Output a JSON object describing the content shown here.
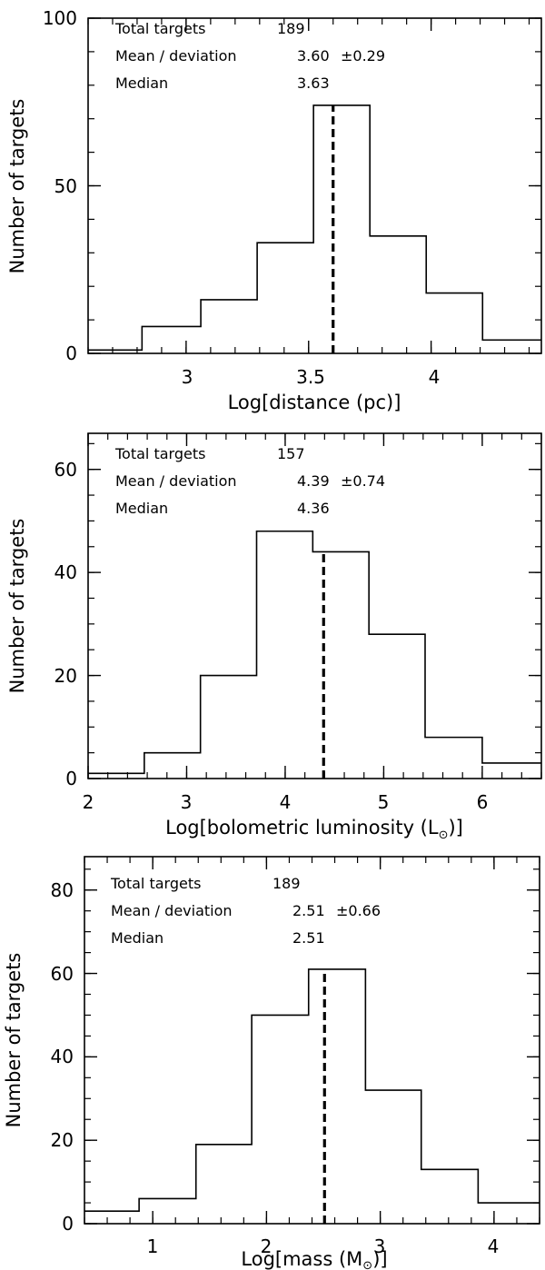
{
  "chart_data": [
    {
      "type": "histogram",
      "xlabel": "Log[distance (pc)]",
      "xlabel_parts": {
        "pre": "Log[distance (pc)]",
        "symbol": "",
        "post": ""
      },
      "ylabel": "Number of targets",
      "xlim": [
        2.6,
        4.45
      ],
      "ylim": [
        0,
        100
      ],
      "xticks": [
        3,
        3.5,
        4
      ],
      "xtick_labels": [
        "3",
        "3.5",
        "4"
      ],
      "xminor_step": 0.1,
      "yticks": [
        0,
        50,
        100
      ],
      "ytick_labels": [
        "0",
        "50",
        "100"
      ],
      "yminor_step": 10,
      "edges": [
        2.6,
        2.82,
        3.06,
        3.29,
        3.52,
        3.75,
        3.98,
        4.21,
        4.45
      ],
      "counts": [
        1,
        8,
        16,
        33,
        74,
        35,
        18,
        4
      ],
      "marker_line_x": 3.6,
      "stats": {
        "total_label": "Total targets",
        "total_value": "189",
        "mean_label": "Mean / deviation",
        "mean_value": "3.60",
        "deviation_value": "±0.29",
        "median_label": "Median",
        "median_value": "3.63"
      }
    },
    {
      "type": "histogram",
      "xlabel": "Log[bolometric luminosity (L⊙)]",
      "xlabel_parts": {
        "pre": "Log[bolometric luminosity (L",
        "symbol": "⊙",
        "post": ")]"
      },
      "ylabel": "Number of targets",
      "xlim": [
        2,
        6.6
      ],
      "ylim": [
        0,
        67
      ],
      "xticks": [
        2,
        3,
        4,
        5,
        6
      ],
      "xtick_labels": [
        "2",
        "3",
        "4",
        "5",
        "6"
      ],
      "xminor_step": 0.2,
      "yticks": [
        0,
        20,
        40,
        60
      ],
      "ytick_labels": [
        "0",
        "20",
        "40",
        "60"
      ],
      "yminor_step": 5,
      "edges": [
        2,
        2.57,
        3.14,
        3.71,
        4.28,
        4.85,
        5.42,
        6.0,
        6.6
      ],
      "counts": [
        1,
        5,
        20,
        48,
        44,
        28,
        8,
        3
      ],
      "marker_line_x": 4.39,
      "stats": {
        "total_label": "Total targets",
        "total_value": "157",
        "mean_label": "Mean / deviation",
        "mean_value": "4.39",
        "deviation_value": "±0.74",
        "median_label": "Median",
        "median_value": "4.36"
      }
    },
    {
      "type": "histogram",
      "xlabel": "Log[mass (M⊙)]",
      "xlabel_parts": {
        "pre": "Log[mass (M",
        "symbol": "⊙",
        "post": ")]"
      },
      "ylabel": "Number of targets",
      "xlim": [
        0.4,
        4.4
      ],
      "ylim": [
        0,
        88
      ],
      "xticks": [
        1,
        2,
        3,
        4
      ],
      "xtick_labels": [
        "1",
        "2",
        "3",
        "4"
      ],
      "xminor_step": 0.2,
      "yticks": [
        0,
        20,
        40,
        60,
        80
      ],
      "ytick_labels": [
        "0",
        "20",
        "40",
        "60",
        "80"
      ],
      "yminor_step": 5,
      "edges": [
        0.4,
        0.88,
        1.38,
        1.87,
        2.37,
        2.87,
        3.36,
        3.86,
        4.4
      ],
      "counts": [
        3,
        6,
        19,
        50,
        61,
        32,
        13,
        5
      ],
      "marker_line_x": 2.51,
      "stats": {
        "total_label": "Total targets",
        "total_value": "189",
        "mean_label": "Mean / deviation",
        "mean_value": "2.51",
        "deviation_value": "±0.66",
        "median_label": "Median",
        "median_value": "2.51"
      }
    }
  ]
}
